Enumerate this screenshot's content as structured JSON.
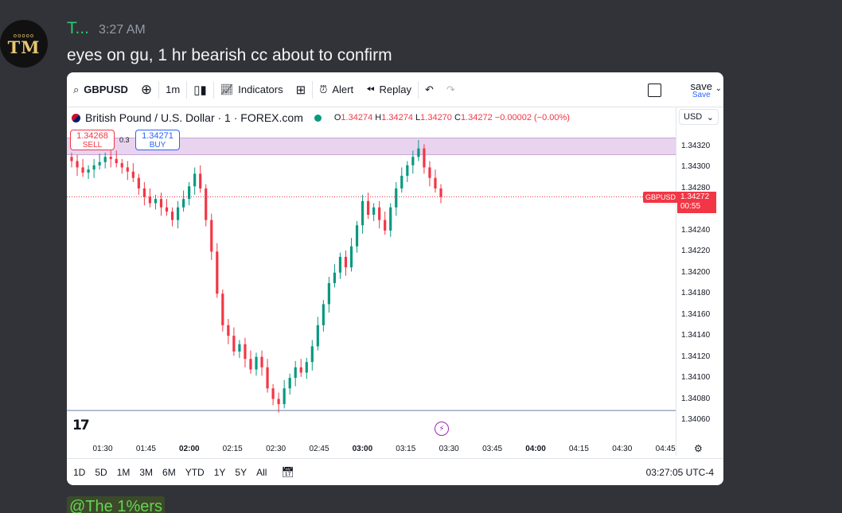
{
  "message": {
    "avatar_text": "TM",
    "avatar_dots": "ooooo",
    "username": "T...",
    "timestamp": "3:27 AM",
    "text": "eyes on gu, 1 hr bearish cc about to confirm",
    "mention": "@The 1%ers"
  },
  "toolbar": {
    "symbol": "GBPUSD",
    "interval": "1m",
    "indicators_label": "Indicators",
    "alert_label": "Alert",
    "replay_label": "Replay",
    "save_label": "save",
    "save_sub": "Save"
  },
  "legend": {
    "title": "British Pound / U.S. Dollar · 1 · FOREX.com",
    "o_label": "O",
    "o": "1.34274",
    "h_label": "H",
    "h": "1.34274",
    "l_label": "L",
    "l": "1.34270",
    "c_label": "C",
    "c": "1.34272",
    "change": "−0.00002 (−0.00%)"
  },
  "currency": "USD",
  "trade": {
    "sell_price": "1.34268",
    "sell_label": "SELL",
    "spread": "0.3",
    "buy_price": "1.34271",
    "buy_label": "BUY"
  },
  "current": {
    "symbol": "GBPUSD",
    "price": "1.34272",
    "countdown": "00:55"
  },
  "colors": {
    "up": "#089981",
    "down": "#f23645",
    "zone": "#e8d4ef"
  },
  "chart_data": {
    "type": "candlestick",
    "price_ticks": [
      "1.34320",
      "1.34300",
      "1.34280",
      "1.34260",
      "1.34240",
      "1.34220",
      "1.34200",
      "1.34180",
      "1.34160",
      "1.34140",
      "1.34120",
      "1.34100",
      "1.34080",
      "1.34060"
    ],
    "time_ticks": [
      "01:30",
      "01:45",
      "02:00",
      "02:15",
      "02:30",
      "02:45",
      "03:00",
      "03:15",
      "03:30",
      "03:45",
      "04:00",
      "04:15",
      "04:30",
      "04:45"
    ],
    "bold_times": [
      "02:00",
      "03:00",
      "04:00"
    ],
    "ylim": [
      1.3405,
      1.3433
    ],
    "zone": [
      1.34312,
      1.3433
    ],
    "low_line": 1.34069,
    "close_path": [
      1.34306,
      1.343,
      1.34295,
      1.34298,
      1.34302,
      1.34305,
      1.3431,
      1.34308,
      1.34304,
      1.343,
      1.34296,
      1.3429,
      1.3428,
      1.34272,
      1.34266,
      1.3427,
      1.34262,
      1.34258,
      1.3425,
      1.34262,
      1.3427,
      1.34282,
      1.34294,
      1.3428,
      1.3425,
      1.3422,
      1.3418,
      1.3415,
      1.3414,
      1.34125,
      1.34132,
      1.34118,
      1.34108,
      1.3412,
      1.3411,
      1.3409,
      1.3408,
      1.34075,
      1.3409,
      1.341,
      1.3411,
      1.34105,
      1.34115,
      1.3413,
      1.3415,
      1.3417,
      1.3419,
      1.342,
      1.34215,
      1.34205,
      1.34225,
      1.34245,
      1.34268,
      1.34255,
      1.34262,
      1.3425,
      1.3424,
      1.34262,
      1.3428,
      1.34292,
      1.34302,
      1.3431,
      1.34318,
      1.343,
      1.3429,
      1.3428,
      1.34272
    ]
  },
  "bottombar": {
    "ranges": [
      "1D",
      "5D",
      "1M",
      "3M",
      "6M",
      "YTD",
      "1Y",
      "5Y",
      "All"
    ],
    "clock": "03:27:05 UTC-4"
  }
}
